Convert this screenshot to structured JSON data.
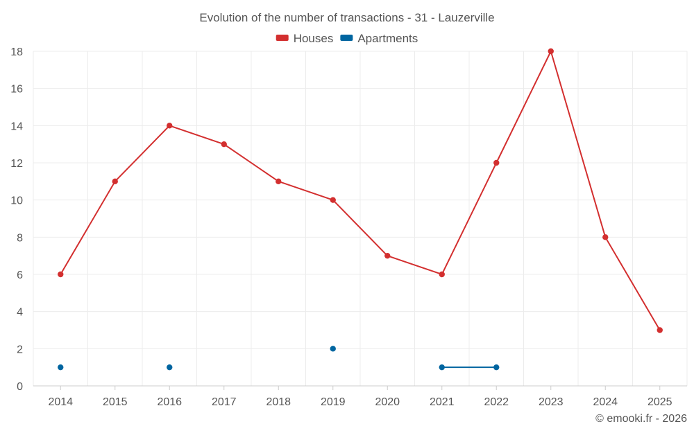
{
  "chart_data": {
    "type": "line",
    "title": "Evolution of the number of transactions - 31 - Lauzerville",
    "categories": [
      "2014",
      "2015",
      "2016",
      "2017",
      "2018",
      "2019",
      "2020",
      "2021",
      "2022",
      "2023",
      "2024",
      "2025"
    ],
    "series": [
      {
        "name": "Houses",
        "color": "#d32f2f",
        "values": [
          6,
          11,
          14,
          13,
          11,
          10,
          7,
          6,
          12,
          18,
          8,
          3
        ]
      },
      {
        "name": "Apartments",
        "color": "#0065a0",
        "values": [
          1,
          null,
          1,
          null,
          null,
          2,
          null,
          1,
          1,
          null,
          null,
          null
        ]
      }
    ],
    "ylim": [
      0,
      18
    ],
    "yticks": [
      0,
      2,
      4,
      6,
      8,
      10,
      12,
      14,
      16,
      18
    ],
    "grid": true,
    "legend": "top-center"
  },
  "copyright": "© emooki.fr - 2026"
}
